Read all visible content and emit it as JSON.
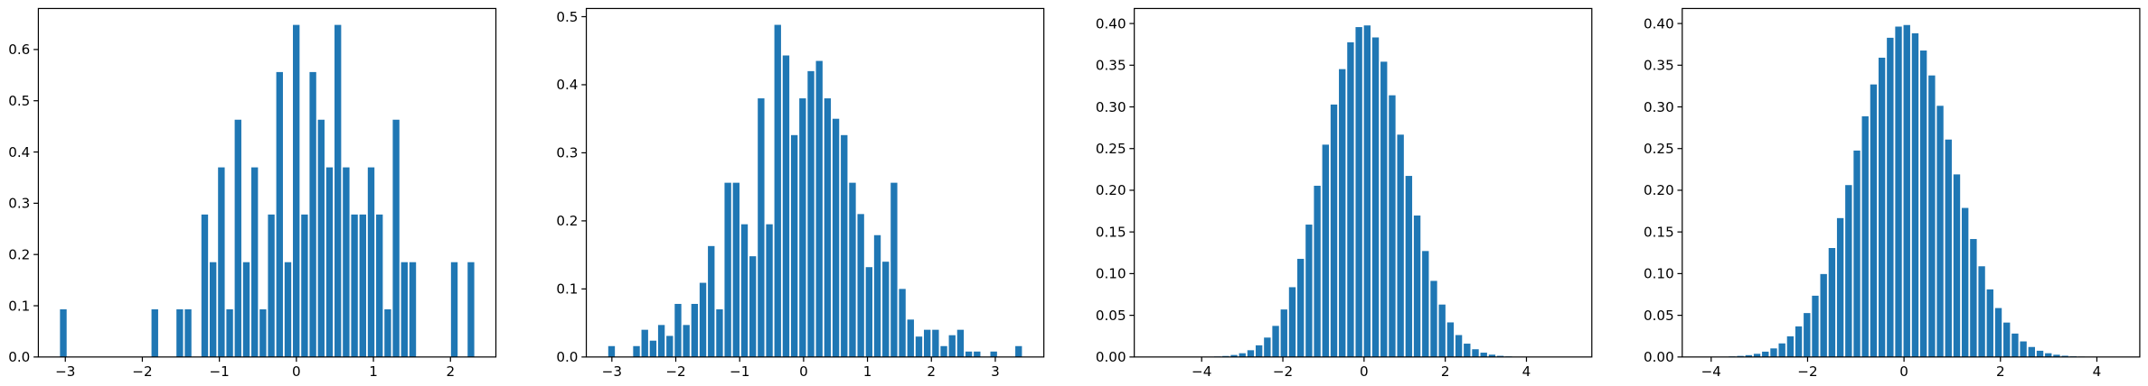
{
  "chart_data": [
    {
      "type": "histogram",
      "color": "#1f77b4",
      "bins": [
        -3.08,
        -2.972,
        -2.864,
        -2.756,
        -2.648,
        -2.54,
        -2.432,
        -2.324,
        -2.216,
        -2.108,
        -2.0,
        -1.892,
        -1.784,
        -1.676,
        -1.568,
        -1.46,
        -1.352,
        -1.244,
        -1.136,
        -1.028,
        -0.92,
        -0.812,
        -0.704,
        -0.596,
        -0.488,
        -0.38,
        -0.272,
        -0.164,
        -0.056,
        0.052,
        0.16,
        0.268,
        0.376,
        0.484,
        0.592,
        0.7,
        0.808,
        0.916,
        1.024,
        1.132,
        1.24,
        1.348,
        1.456,
        1.564,
        1.672,
        1.78,
        1.888,
        1.996,
        2.104,
        2.212,
        2.32
      ],
      "values": [
        0.093,
        0,
        0,
        0,
        0,
        0,
        0,
        0,
        0,
        0,
        0,
        0.093,
        0,
        0,
        0.093,
        0.093,
        0,
        0.278,
        0.185,
        0.37,
        0.093,
        0.463,
        0.185,
        0.37,
        0.093,
        0.278,
        0.556,
        0.185,
        0.648,
        0.278,
        0.556,
        0.463,
        0.37,
        0.648,
        0.37,
        0.278,
        0.278,
        0.37,
        0.278,
        0.093,
        0.463,
        0.185,
        0.185,
        0,
        0,
        0,
        0,
        0.185,
        0,
        0.185
      ],
      "xlim": [
        -3.35,
        2.59
      ],
      "ylim": [
        0,
        0.68
      ],
      "xticks": [
        {
          "value": -3,
          "label": "−3"
        },
        {
          "value": -2,
          "label": "−2"
        },
        {
          "value": -1,
          "label": "−1"
        },
        0,
        1,
        2
      ],
      "yticks": [
        {
          "value": 0,
          "label": "0.0"
        },
        0.1,
        0.2,
        0.3,
        0.4,
        0.5,
        0.6
      ]
    },
    {
      "type": "histogram",
      "color": "#1f77b4",
      "bins": [
        -3.07,
        -2.94,
        -2.81,
        -2.68,
        -2.55,
        -2.42,
        -2.29,
        -2.16,
        -2.03,
        -1.9,
        -1.77,
        -1.64,
        -1.51,
        -1.38,
        -1.25,
        -1.12,
        -0.99,
        -0.86,
        -0.73,
        -0.6,
        -0.47,
        -0.34,
        -0.21,
        -0.08,
        0.05,
        0.18,
        0.31,
        0.44,
        0.57,
        0.7,
        0.83,
        0.96,
        1.09,
        1.22,
        1.35,
        1.48,
        1.61,
        1.74,
        1.87,
        2.0,
        2.13,
        2.26,
        2.39,
        2.52,
        2.65,
        2.78,
        2.91,
        3.04,
        3.17,
        3.3,
        3.43
      ],
      "values": [
        0.016,
        0,
        0,
        0.016,
        0.04,
        0.024,
        0.047,
        0.031,
        0.078,
        0.047,
        0.078,
        0.109,
        0.163,
        0.07,
        0.256,
        0.256,
        0.195,
        0.148,
        0.38,
        0.195,
        0.488,
        0.443,
        0.326,
        0.38,
        0.42,
        0.435,
        0.38,
        0.35,
        0.326,
        0.256,
        0.21,
        0.132,
        0.179,
        0.14,
        0.256,
        0.1,
        0.055,
        0.03,
        0.04,
        0.04,
        0.016,
        0.032,
        0.04,
        0.008,
        0.008,
        0,
        0.008,
        0,
        0,
        0.016
      ],
      "xlim": [
        -3.4,
        3.76
      ],
      "ylim": [
        0,
        0.512
      ],
      "xticks": [
        {
          "value": -3,
          "label": "−3"
        },
        {
          "value": -2,
          "label": "−2"
        },
        {
          "value": -1,
          "label": "−1"
        },
        0,
        1,
        2,
        3
      ],
      "yticks": [
        {
          "value": 0,
          "label": "0.0"
        },
        0.1,
        0.2,
        0.3,
        0.4,
        0.5
      ]
    },
    {
      "type": "histogram",
      "color": "#1f77b4",
      "bins": [
        -5.15,
        -4.945,
        -4.74,
        -4.535,
        -4.33,
        -4.125,
        -3.92,
        -3.715,
        -3.51,
        -3.305,
        -3.1,
        -2.895,
        -2.69,
        -2.485,
        -2.28,
        -2.075,
        -1.87,
        -1.665,
        -1.46,
        -1.255,
        -1.05,
        -0.845,
        -0.64,
        -0.435,
        -0.23,
        -0.025,
        0.18,
        0.385,
        0.59,
        0.795,
        1.0,
        1.205,
        1.41,
        1.615,
        1.82,
        2.025,
        2.23,
        2.435,
        2.64,
        2.845,
        3.05,
        3.255,
        3.46,
        3.665,
        3.87,
        4.075,
        4.28,
        4.485,
        4.69,
        4.895,
        5.1
      ],
      "values": [
        0,
        0,
        0,
        0,
        0,
        0.0001,
        0.0003,
        0.0006,
        0.0012,
        0.0024,
        0.0045,
        0.0081,
        0.014,
        0.0233,
        0.0373,
        0.057,
        0.0837,
        0.1177,
        0.1588,
        0.2054,
        0.2547,
        0.3028,
        0.3453,
        0.3775,
        0.3957,
        0.3977,
        0.3833,
        0.3542,
        0.3139,
        0.2667,
        0.2172,
        0.1697,
        0.1271,
        0.0913,
        0.0629,
        0.0415,
        0.0263,
        0.016,
        0.0093,
        0.0052,
        0.0028,
        0.0014,
        0.0007,
        0.0003,
        0.0001,
        0,
        0,
        0,
        0,
        0
      ],
      "xlim": [
        -5.66,
        5.61
      ],
      "ylim": [
        0,
        0.418
      ],
      "xticks": [
        {
          "value": -4,
          "label": "−4"
        },
        {
          "value": -2,
          "label": "−2"
        },
        0,
        2,
        4
      ],
      "yticks": [
        {
          "value": 0,
          "label": "0.00"
        },
        0.05,
        {
          "value": 0.1,
          "label": "0.10"
        },
        0.15,
        {
          "value": 0.2,
          "label": "0.20"
        },
        0.25,
        {
          "value": 0.3,
          "label": "0.30"
        },
        0.35,
        {
          "value": 0.4,
          "label": "0.40"
        }
      ]
    },
    {
      "type": "histogram",
      "color": "#1f77b4",
      "bins": [
        -4.17,
        -3.997,
        -3.825,
        -3.652,
        -3.48,
        -3.307,
        -3.134,
        -2.962,
        -2.789,
        -2.617,
        -2.444,
        -2.271,
        -2.099,
        -1.926,
        -1.754,
        -1.581,
        -1.408,
        -1.236,
        -1.063,
        -0.891,
        -0.718,
        -0.545,
        -0.373,
        -0.2,
        -0.028,
        0.145,
        0.318,
        0.49,
        0.663,
        0.835,
        1.008,
        1.181,
        1.353,
        1.526,
        1.698,
        1.871,
        2.044,
        2.216,
        2.389,
        2.561,
        2.734,
        2.907,
        3.079,
        3.252,
        3.424,
        3.597,
        3.77,
        3.942,
        4.115,
        4.287,
        4.46
      ],
      "values": [
        0,
        0.0002,
        0.0004,
        0.0007,
        0.0013,
        0.0022,
        0.0038,
        0.0064,
        0.0103,
        0.0163,
        0.0248,
        0.0367,
        0.0527,
        0.0735,
        0.0995,
        0.1307,
        0.1666,
        0.2062,
        0.2476,
        0.2887,
        0.3269,
        0.359,
        0.3829,
        0.3963,
        0.3982,
        0.3883,
        0.3676,
        0.3377,
        0.3013,
        0.2608,
        0.219,
        0.1788,
        0.1415,
        0.1088,
        0.0811,
        0.0587,
        0.0413,
        0.0281,
        0.0187,
        0.012,
        0.0075,
        0.0045,
        0.0027,
        0.0015,
        0.0008,
        0.0005,
        0.0002,
        0.0001,
        0.0001,
        0
      ],
      "xlim": [
        -4.6,
        4.89
      ],
      "ylim": [
        0,
        0.418
      ],
      "xticks": [
        {
          "value": -4,
          "label": "−4"
        },
        {
          "value": -2,
          "label": "−2"
        },
        0,
        2,
        4
      ],
      "yticks": [
        {
          "value": 0,
          "label": "0.00"
        },
        0.05,
        {
          "value": 0.1,
          "label": "0.10"
        },
        0.15,
        {
          "value": 0.2,
          "label": "0.20"
        },
        0.25,
        {
          "value": 0.3,
          "label": "0.30"
        },
        0.35,
        {
          "value": 0.4,
          "label": "0.40"
        }
      ]
    }
  ]
}
